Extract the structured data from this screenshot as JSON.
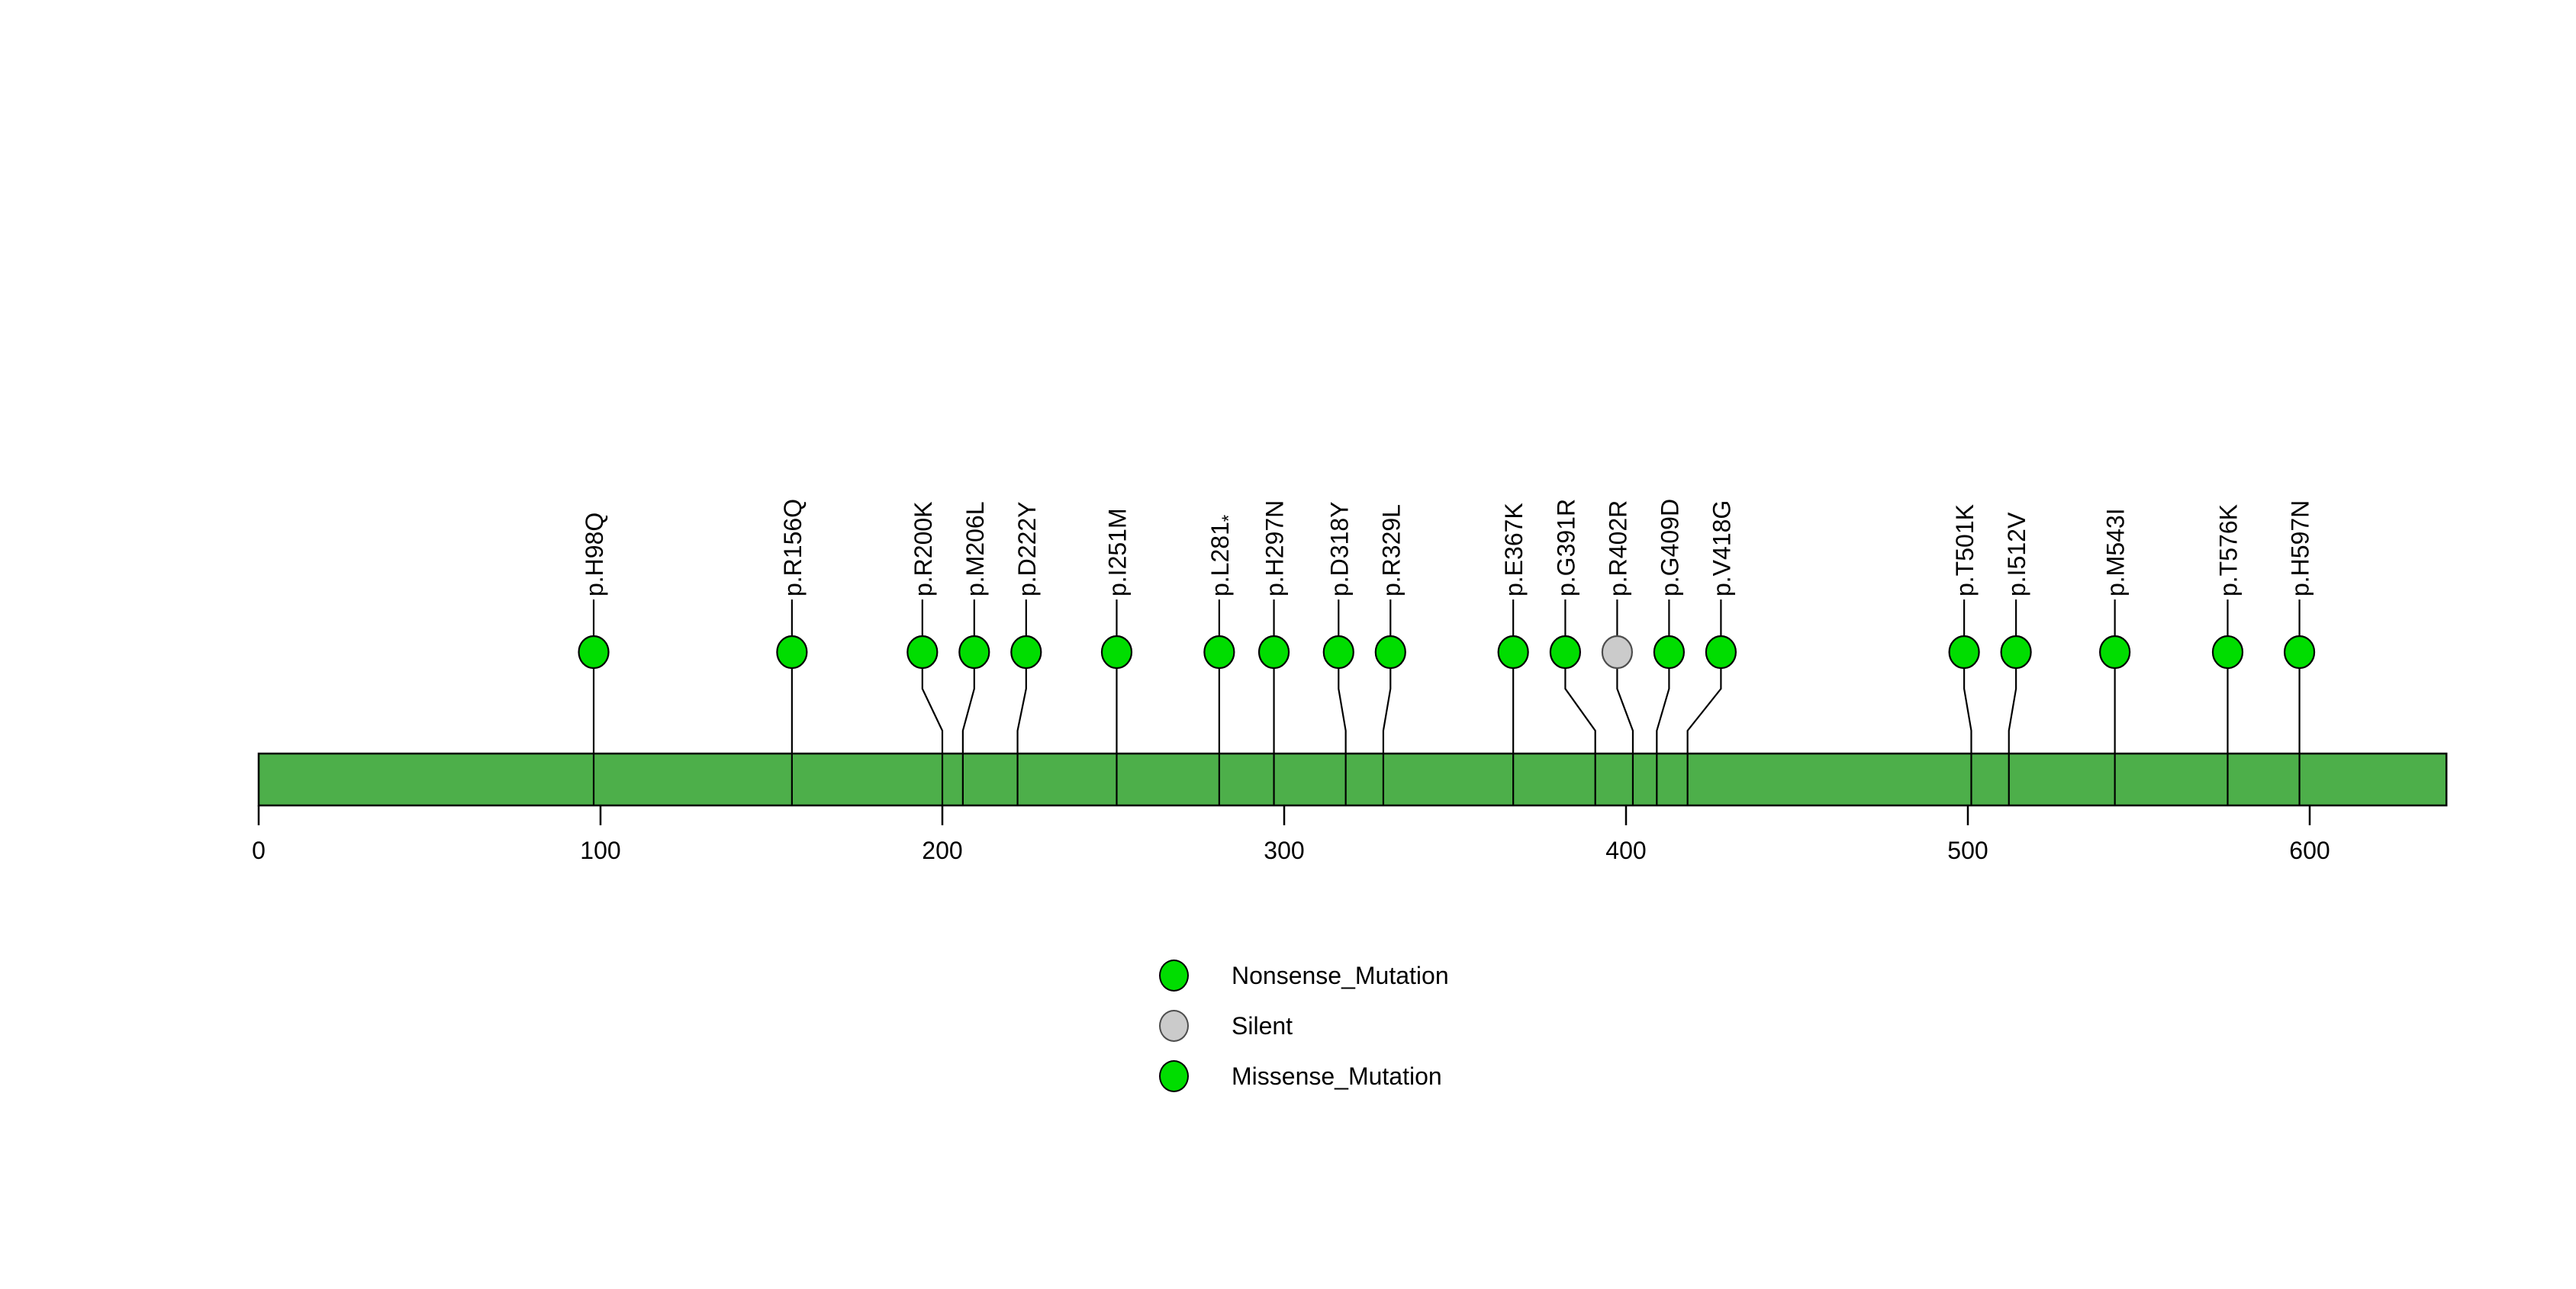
{
  "chart_data": {
    "type": "lollipop",
    "title": "",
    "protein_length": 640,
    "x_axis_ticks": [
      0,
      100,
      200,
      300,
      400,
      500,
      600
    ],
    "grid": false,
    "legend_position": "bottom-center",
    "mutations": [
      {
        "label": "p.H98Q",
        "position": 98,
        "type": "Missense_Mutation"
      },
      {
        "label": "p.R156Q",
        "position": 156,
        "type": "Missense_Mutation"
      },
      {
        "label": "p.R200K",
        "position": 200,
        "type": "Missense_Mutation"
      },
      {
        "label": "p.M206L",
        "position": 206,
        "type": "Missense_Mutation"
      },
      {
        "label": "p.D222Y",
        "position": 222,
        "type": "Missense_Mutation"
      },
      {
        "label": "p.I251M",
        "position": 251,
        "type": "Missense_Mutation"
      },
      {
        "label": "p.L281",
        "label_sub": "*",
        "position": 281,
        "type": "Nonsense_Mutation"
      },
      {
        "label": "p.H297N",
        "position": 297,
        "type": "Missense_Mutation"
      },
      {
        "label": "p.D318Y",
        "position": 318,
        "type": "Missense_Mutation"
      },
      {
        "label": "p.R329L",
        "position": 329,
        "type": "Missense_Mutation"
      },
      {
        "label": "p.E367K",
        "position": 367,
        "type": "Missense_Mutation"
      },
      {
        "label": "p.G391R",
        "position": 391,
        "type": "Missense_Mutation"
      },
      {
        "label": "p.R402R",
        "position": 402,
        "type": "Silent"
      },
      {
        "label": "p.G409D",
        "position": 409,
        "type": "Missense_Mutation"
      },
      {
        "label": "p.V418G",
        "position": 418,
        "type": "Missense_Mutation"
      },
      {
        "label": "p.T501K",
        "position": 501,
        "type": "Missense_Mutation"
      },
      {
        "label": "p.I512V",
        "position": 512,
        "type": "Missense_Mutation"
      },
      {
        "label": "p.M543I",
        "position": 543,
        "type": "Missense_Mutation"
      },
      {
        "label": "p.T576K",
        "position": 576,
        "type": "Missense_Mutation"
      },
      {
        "label": "p.H597N",
        "position": 597,
        "type": "Missense_Mutation"
      }
    ],
    "legend": [
      {
        "label": "Nonsense_Mutation",
        "type": "Nonsense_Mutation"
      },
      {
        "label": "Silent",
        "type": "Silent"
      },
      {
        "label": "Missense_Mutation",
        "type": "Missense_Mutation"
      }
    ],
    "colors": {
      "Missense_Mutation": {
        "fill": "#00DD00",
        "border": "#000000"
      },
      "Nonsense_Mutation": {
        "fill": "#00DD00",
        "border": "#000000"
      },
      "Silent": {
        "fill": "#CBCBCB",
        "border": "#4D4D4D"
      },
      "gene_bar": {
        "fill": "#4DAF4A",
        "border": "#000000"
      }
    }
  }
}
